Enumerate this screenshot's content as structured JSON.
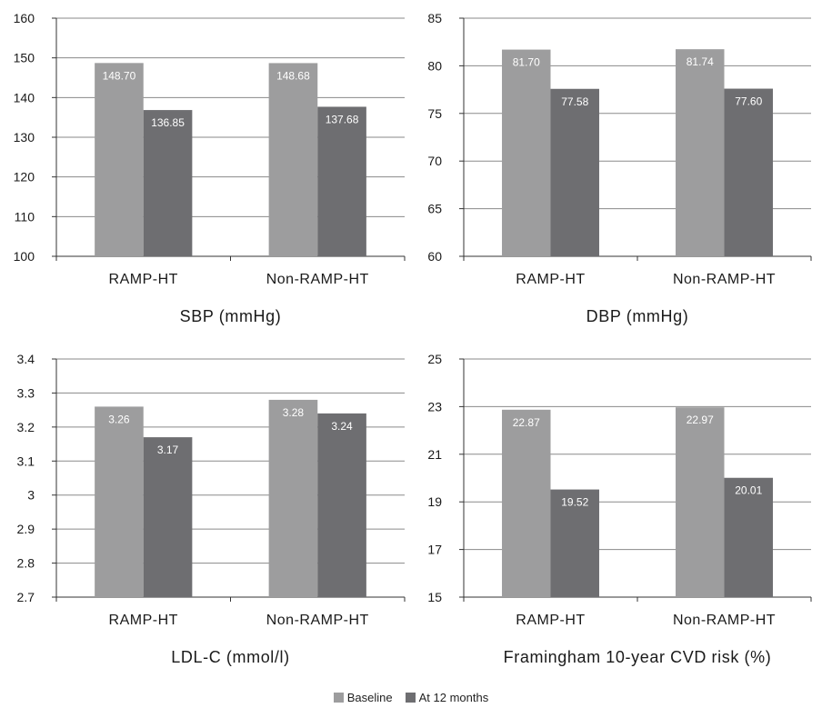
{
  "colors": {
    "baseline": "#9d9d9e",
    "at12": "#6e6e71",
    "axis": "#333333"
  },
  "legend": {
    "baseline": "Baseline",
    "at12": "At 12 months"
  },
  "chart_data": [
    {
      "type": "bar",
      "title": "SBP (mmHg)",
      "categories": [
        "RAMP-HT",
        "Non-RAMP-HT"
      ],
      "series": [
        {
          "name": "Baseline",
          "values": [
            148.7,
            148.68
          ],
          "labels": [
            "148.70",
            "148.68"
          ]
        },
        {
          "name": "At 12 months",
          "values": [
            136.85,
            137.68
          ],
          "labels": [
            "136.85",
            "137.68"
          ]
        }
      ],
      "ylim": [
        100,
        160
      ],
      "ticks": [
        "100",
        "110",
        "120",
        "130",
        "140",
        "150",
        "160"
      ],
      "grid": true
    },
    {
      "type": "bar",
      "title": "DBP (mmHg)",
      "categories": [
        "RAMP-HT",
        "Non-RAMP-HT"
      ],
      "series": [
        {
          "name": "Baseline",
          "values": [
            81.7,
            81.74
          ],
          "labels": [
            "81.70",
            "81.74"
          ]
        },
        {
          "name": "At 12 months",
          "values": [
            77.58,
            77.6
          ],
          "labels": [
            "77.58",
            "77.60"
          ]
        }
      ],
      "ylim": [
        60,
        85
      ],
      "ticks": [
        "60",
        "65",
        "70",
        "75",
        "80",
        "85"
      ],
      "grid": true
    },
    {
      "type": "bar",
      "title": "LDL-C (mmol/l)",
      "categories": [
        "RAMP-HT",
        "Non-RAMP-HT"
      ],
      "series": [
        {
          "name": "Baseline",
          "values": [
            3.26,
            3.28
          ],
          "labels": [
            "3.26",
            "3.28"
          ]
        },
        {
          "name": "At 12 months",
          "values": [
            3.17,
            3.24
          ],
          "labels": [
            "3.17",
            "3.24"
          ]
        }
      ],
      "ylim": [
        2.7,
        3.4
      ],
      "ticks": [
        "2.7",
        "2.8",
        "2.9",
        "3",
        "3.1",
        "3.2",
        "3.3",
        "3.4"
      ],
      "grid": true
    },
    {
      "type": "bar",
      "title": "Framingham 10-year CVD risk (%)",
      "categories": [
        "RAMP-HT",
        "Non-RAMP-HT"
      ],
      "series": [
        {
          "name": "Baseline",
          "values": [
            22.87,
            22.97
          ],
          "labels": [
            "22.87",
            "22.97"
          ]
        },
        {
          "name": "At 12 months",
          "values": [
            19.52,
            20.01
          ],
          "labels": [
            "19.52",
            "20.01"
          ]
        }
      ],
      "ylim": [
        15,
        25
      ],
      "ticks": [
        "15",
        "17",
        "19",
        "21",
        "23",
        "25"
      ],
      "grid": true
    }
  ]
}
